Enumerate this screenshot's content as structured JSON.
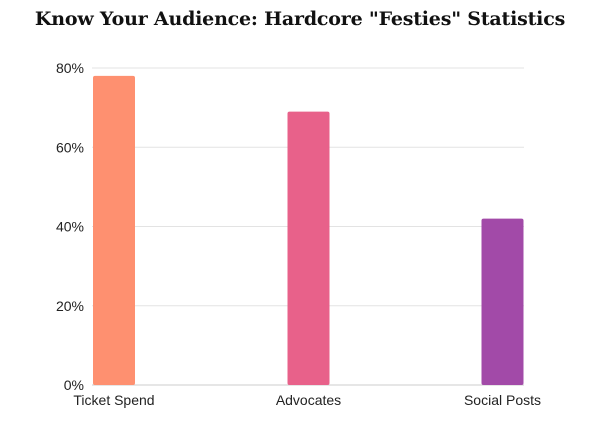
{
  "chart_data": {
    "type": "bar",
    "title": "Know Your Audience: Hardcore \"Festies\" Statistics",
    "categories": [
      "Ticket Spend",
      "Advocates",
      "Social Posts"
    ],
    "values": [
      78,
      69,
      42
    ],
    "bar_colors": [
      "#fe9070",
      "#e8618a",
      "#a24aa8"
    ],
    "yticks": [
      "0%",
      "20%",
      "40%",
      "60%",
      "80%"
    ],
    "ytick_values": [
      0,
      20,
      40,
      60,
      80
    ],
    "ylim": [
      0,
      80
    ],
    "unit": "%",
    "xlabel": "",
    "ylabel": "",
    "grid": true,
    "legend": "none"
  }
}
